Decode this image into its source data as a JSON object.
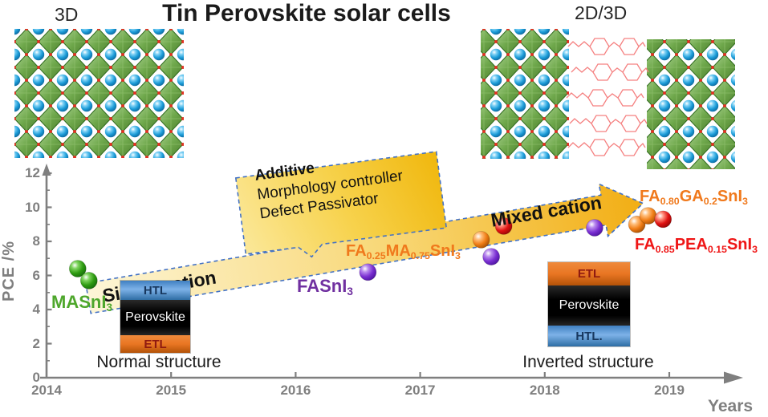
{
  "title": "Tin Perovskite solar cells",
  "structures": {
    "left_label": "3D",
    "right_label": "2D/3D"
  },
  "axes": {
    "y_label": "PCE /%",
    "x_label": "Years",
    "y_ticks": [
      0,
      2,
      4,
      6,
      8,
      10,
      12
    ],
    "x_ticks": [
      2014,
      2015,
      2016,
      2017,
      2018,
      2019
    ]
  },
  "timeline": {
    "single_cation": "Single cation",
    "mixed_cation": "Mixed cation"
  },
  "callout": {
    "title": "Additive",
    "line2": "Morphology controller",
    "line3": "Defect Passivator"
  },
  "devices": {
    "normal": {
      "caption": "Normal structure",
      "layers": [
        {
          "name": "HTL"
        },
        {
          "name": "Perovskite"
        },
        {
          "name": "ETL"
        }
      ]
    },
    "inverted": {
      "caption": "Inverted structure",
      "layers": [
        {
          "name": "ETL"
        },
        {
          "name": "Perovskite"
        },
        {
          "name": "HTL."
        }
      ]
    }
  },
  "formulas": {
    "masni3": {
      "color": "#4ea72c",
      "segments": [
        {
          "t": "MASnI"
        },
        {
          "t": "3",
          "sub": true
        }
      ]
    },
    "fasni3": {
      "color": "#7030a0",
      "segments": [
        {
          "t": "FASnI"
        },
        {
          "t": "3",
          "sub": true
        }
      ]
    },
    "famasni3": {
      "color": "#f0791c",
      "segments": [
        {
          "t": "FA"
        },
        {
          "t": "0.25",
          "sub": true
        },
        {
          "t": "MA"
        },
        {
          "t": "0.75",
          "sub": true
        },
        {
          "t": "SnI"
        },
        {
          "t": "3",
          "sub": true
        }
      ]
    },
    "fagasni3": {
      "color": "#f0791c",
      "segments": [
        {
          "t": "FA"
        },
        {
          "t": "0.80",
          "sub": true
        },
        {
          "t": "GA"
        },
        {
          "t": "0.2",
          "sub": true
        },
        {
          "t": "SnI"
        },
        {
          "t": "3",
          "sub": true
        }
      ]
    },
    "fapeasni3": {
      "color": "#ef1616",
      "segments": [
        {
          "t": "FA"
        },
        {
          "t": "0.85",
          "sub": true
        },
        {
          "t": "PEA"
        },
        {
          "t": "0.15",
          "sub": true
        },
        {
          "t": "SnI"
        },
        {
          "t": "3",
          "sub": true
        }
      ]
    }
  },
  "chart_data": {
    "type": "scatter",
    "title": "Tin Perovskite solar cells",
    "xlabel": "Years",
    "ylabel": "PCE /%",
    "xlim": [
      2014,
      2019.6
    ],
    "ylim": [
      0,
      12
    ],
    "x_ticks": [
      2014,
      2015,
      2016,
      2017,
      2018,
      2019
    ],
    "y_ticks": [
      0,
      2,
      4,
      6,
      8,
      10,
      12
    ],
    "grid": false,
    "legend": "none",
    "series": [
      {
        "name": "MASnI3 (single cation)",
        "color_key": "green",
        "color": "#2e9b1e",
        "points": [
          [
            2014.25,
            6.4
          ],
          [
            2014.34,
            5.7
          ]
        ]
      },
      {
        "name": "FASnI3 (single cation)",
        "color_key": "purple",
        "color": "#7b2fd0",
        "points": [
          [
            2016.58,
            6.2
          ],
          [
            2017.57,
            7.1
          ],
          [
            2018.4,
            8.8
          ]
        ]
      },
      {
        "name": "FA0.25MA0.75SnI3 / FA0.80GA0.2SnI3 (mixed cation)",
        "color_key": "orange",
        "color": "#f0821e",
        "points": [
          [
            2017.49,
            8.1
          ],
          [
            2018.74,
            9.0
          ],
          [
            2018.83,
            9.5
          ]
        ]
      },
      {
        "name": "FA0.85PEA0.15SnI3 (2D/3D)",
        "color_key": "red",
        "color": "#e31212",
        "points": [
          [
            2017.67,
            8.9
          ],
          [
            2018.95,
            9.3
          ]
        ]
      }
    ],
    "annotations": [
      "Single cation",
      "Mixed cation",
      "Additive",
      "Morphology controller",
      "Defect Passivator",
      "Normal structure",
      "Inverted structure",
      "3D",
      "2D/3D"
    ]
  }
}
